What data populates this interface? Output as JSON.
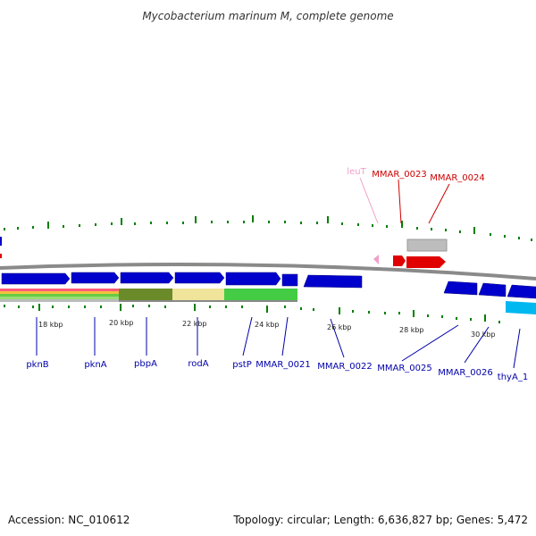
{
  "title": "Mycobacterium marinum M, complete genome",
  "footer": {
    "accession": "Accession: NC_010612",
    "info": "Topology: circular; Length: 6,636,827 bp; Genes: 5,472"
  },
  "colors": {
    "gene_blue": "#0000cc",
    "gene_red": "#e00000",
    "trna_pink": "#f0a0c8",
    "label_blue": "#0000aa",
    "label_red": "#cc0000",
    "tick_green": "#008000",
    "backbone": "#888888"
  },
  "scale_labels": [
    {
      "text": "18 kbp"
    },
    {
      "text": "20 kbp"
    },
    {
      "text": "22 kbp"
    },
    {
      "text": "24 kbp"
    },
    {
      "text": "26 kbp"
    },
    {
      "text": "28 kbp"
    },
    {
      "text": "30 kbp"
    }
  ],
  "gene_labels": [
    {
      "text": "pknB",
      "color": "#0000aa"
    },
    {
      "text": "pknA",
      "color": "#0000aa"
    },
    {
      "text": "pbpA",
      "color": "#0000aa"
    },
    {
      "text": "rodA",
      "color": "#0000aa"
    },
    {
      "text": "pstP",
      "color": "#0000aa"
    },
    {
      "text": "MMAR_0021",
      "color": "#0000aa"
    },
    {
      "text": "MMAR_0022",
      "color": "#0000aa"
    },
    {
      "text": "MMAR_0025",
      "color": "#0000aa"
    },
    {
      "text": "MMAR_0026",
      "color": "#0000aa"
    },
    {
      "text": "thyA_1",
      "color": "#0000aa"
    },
    {
      "text": "leuT",
      "color": "#f0a0c8"
    },
    {
      "text": "MMAR_0023",
      "color": "#cc0000"
    },
    {
      "text": "MMAR_0024",
      "color": "#cc0000"
    }
  ]
}
